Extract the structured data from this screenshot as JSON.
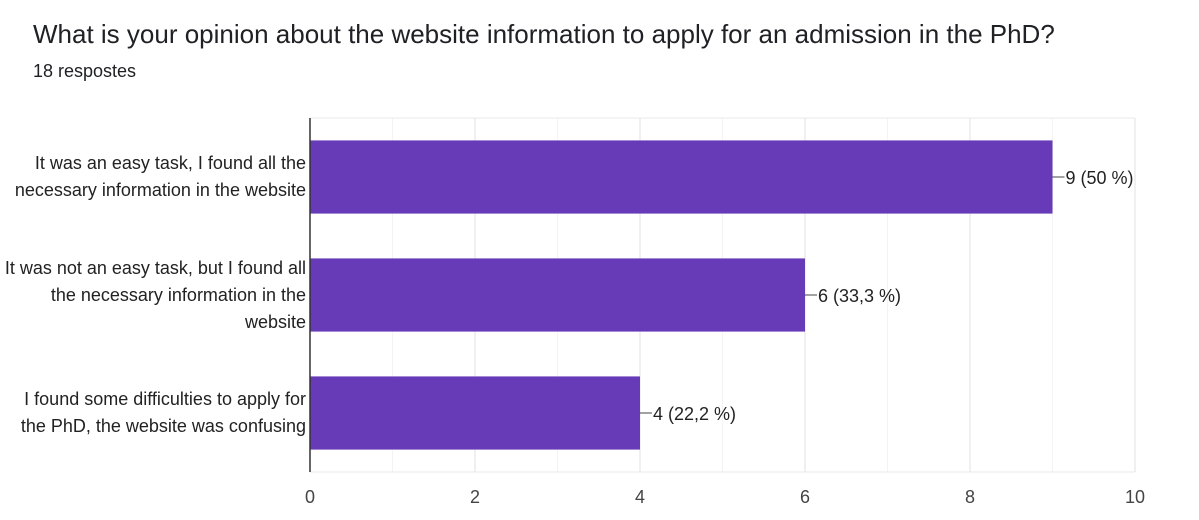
{
  "chart_data": {
    "type": "bar",
    "orientation": "horizontal",
    "title": "What is your opinion about the website information to apply for an admission in the PhD?",
    "subtitle": "18 respostes",
    "categories": [
      "It was an easy task, I found all the necessary information in the website",
      "It was not an easy task, but I found all the necessary information in the website",
      "I found some difficulties to apply for the PhD, the website was confusing"
    ],
    "values": [
      9,
      6,
      4
    ],
    "value_labels": [
      "9 (50 %)",
      "6 (33,3 %)",
      "4 (22,2 %)"
    ],
    "color": "#673ab7",
    "xlim": [
      0,
      10
    ],
    "xticks": [
      0,
      2,
      4,
      6,
      8,
      10
    ],
    "grid": true
  }
}
